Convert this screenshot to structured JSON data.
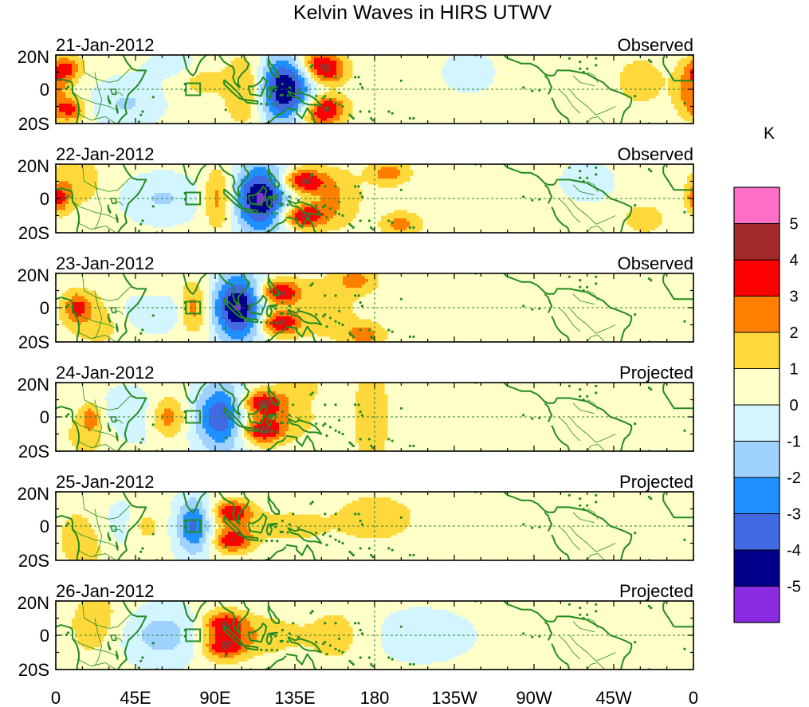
{
  "chart_data": {
    "type": "heatmap",
    "title": "Kelvin Waves in HIRS UTWV",
    "units": "K",
    "x_ticks": [
      "0",
      "45E",
      "90E",
      "135E",
      "180",
      "135W",
      "90W",
      "45W",
      "0"
    ],
    "y_ticks": [
      "20N",
      "0",
      "20S"
    ],
    "xlim_deg_east": [
      0,
      360
    ],
    "ylim_deg_lat": [
      -20,
      20
    ],
    "colorbar": {
      "labels": [
        "5",
        "4",
        "3",
        "2",
        "1",
        "0",
        "-1",
        "-2",
        "-3",
        "-4",
        "-5"
      ],
      "levels": [
        5,
        4,
        3,
        2,
        1,
        0,
        -1,
        -2,
        -3,
        -4,
        -5
      ],
      "colors": [
        "#ff6ec7",
        "#a52a2a",
        "#ff0000",
        "#ff7f00",
        "#ffd93b",
        "#ffffc8",
        "#d2f5ff",
        "#a0d2ff",
        "#1e90ff",
        "#4169e1",
        "#00008b",
        "#8a2be2"
      ]
    },
    "land_color": "#228b22",
    "panels": [
      {
        "date": "21-Jan-2012",
        "label": "Observed",
        "blobs": [
          {
            "lon": 129,
            "lat": 0,
            "v": -5.5,
            "sx": 11,
            "sy": 14
          },
          {
            "lon": 152,
            "lat": 10,
            "v": 3.6,
            "sx": 8,
            "sy": 5
          },
          {
            "lon": 152,
            "lat": -10,
            "v": 3.6,
            "sx": 8,
            "sy": 5
          },
          {
            "lon": 108,
            "lat": 0,
            "v": 2.2,
            "sx": 8,
            "sy": 14
          },
          {
            "lon": 148,
            "lat": 17,
            "v": 2.4,
            "sx": 9,
            "sy": 4
          },
          {
            "lon": 148,
            "lat": -17,
            "v": 2.0,
            "sx": 9,
            "sy": 4
          },
          {
            "lon": 6,
            "lat": 12,
            "v": 2.8,
            "sx": 6,
            "sy": 5
          },
          {
            "lon": 8,
            "lat": -12,
            "v": 2.8,
            "sx": 6,
            "sy": 5
          },
          {
            "lon": 82,
            "lat": 8,
            "v": 1.3,
            "sx": 10,
            "sy": 8
          },
          {
            "lon": 40,
            "lat": -8,
            "v": -1.5,
            "sx": 14,
            "sy": 10
          },
          {
            "lon": 72,
            "lat": 14,
            "v": -1.2,
            "sx": 14,
            "sy": 6
          },
          {
            "lon": 358,
            "lat": 0,
            "v": 2.4,
            "sx": 6,
            "sy": 10
          },
          {
            "lon": 330,
            "lat": 5,
            "v": 1.2,
            "sx": 10,
            "sy": 10
          },
          {
            "lon": 233,
            "lat": 10,
            "v": -1.2,
            "sx": 10,
            "sy": 8
          }
        ]
      },
      {
        "date": "22-Jan-2012",
        "label": "Observed",
        "blobs": [
          {
            "lon": 116,
            "lat": 0,
            "v": -5.6,
            "sx": 11,
            "sy": 14
          },
          {
            "lon": 139,
            "lat": 10,
            "v": 4.0,
            "sx": 9,
            "sy": 5
          },
          {
            "lon": 139,
            "lat": -10,
            "v": 4.0,
            "sx": 9,
            "sy": 5
          },
          {
            "lon": 158,
            "lat": 0,
            "v": 1.6,
            "sx": 10,
            "sy": 12
          },
          {
            "lon": 188,
            "lat": 15,
            "v": 2.2,
            "sx": 8,
            "sy": 5
          },
          {
            "lon": 195,
            "lat": -15,
            "v": 2.0,
            "sx": 8,
            "sy": 5
          },
          {
            "lon": 92,
            "lat": 0,
            "v": 2.4,
            "sx": 6,
            "sy": 12
          },
          {
            "lon": 2,
            "lat": 0,
            "v": 2.6,
            "sx": 4,
            "sy": 6
          },
          {
            "lon": 12,
            "lat": 10,
            "v": 1.4,
            "sx": 10,
            "sy": 10
          },
          {
            "lon": 60,
            "lat": 0,
            "v": -1.5,
            "sx": 16,
            "sy": 10
          },
          {
            "lon": 300,
            "lat": 10,
            "v": -1.3,
            "sx": 10,
            "sy": 8
          },
          {
            "lon": 332,
            "lat": -12,
            "v": 1.3,
            "sx": 8,
            "sy": 6
          }
        ]
      },
      {
        "date": "23-Jan-2012",
        "label": "Observed",
        "blobs": [
          {
            "lon": 103,
            "lat": 0,
            "v": -5.5,
            "sx": 10,
            "sy": 14
          },
          {
            "lon": 126,
            "lat": 9,
            "v": 4.0,
            "sx": 8,
            "sy": 5
          },
          {
            "lon": 126,
            "lat": -9,
            "v": 4.0,
            "sx": 8,
            "sy": 5
          },
          {
            "lon": 152,
            "lat": 0,
            "v": 1.4,
            "sx": 12,
            "sy": 12
          },
          {
            "lon": 170,
            "lat": 16,
            "v": 2.0,
            "sx": 8,
            "sy": 5
          },
          {
            "lon": 174,
            "lat": -16,
            "v": 2.2,
            "sx": 8,
            "sy": 5
          },
          {
            "lon": 78,
            "lat": 0,
            "v": 2.6,
            "sx": 6,
            "sy": 10
          },
          {
            "lon": 12,
            "lat": 0,
            "v": 2.6,
            "sx": 5,
            "sy": 6
          },
          {
            "lon": 25,
            "lat": -5,
            "v": 1.4,
            "sx": 14,
            "sy": 12
          },
          {
            "lon": 52,
            "lat": 0,
            "v": -1.6,
            "sx": 18,
            "sy": 10
          },
          {
            "lon": 55,
            "lat": 12,
            "v": 1.2,
            "sx": 10,
            "sy": 6
          }
        ]
      },
      {
        "date": "24-Jan-2012",
        "label": "Projected",
        "blobs": [
          {
            "lon": 93,
            "lat": 0,
            "v": -4.2,
            "sx": 10,
            "sy": 14
          },
          {
            "lon": 116,
            "lat": 8,
            "v": 3.7,
            "sx": 8,
            "sy": 5
          },
          {
            "lon": 116,
            "lat": -8,
            "v": 3.7,
            "sx": 8,
            "sy": 5
          },
          {
            "lon": 130,
            "lat": 0,
            "v": 1.3,
            "sx": 12,
            "sy": 10
          },
          {
            "lon": 178,
            "lat": 0,
            "v": 1.5,
            "sx": 7,
            "sy": 20
          },
          {
            "lon": 63,
            "lat": 0,
            "v": 2.4,
            "sx": 7,
            "sy": 8
          },
          {
            "lon": 20,
            "lat": 0,
            "v": 2.0,
            "sx": 4,
            "sy": 6
          },
          {
            "lon": 20,
            "lat": -8,
            "v": 1.3,
            "sx": 12,
            "sy": 12
          },
          {
            "lon": 38,
            "lat": 0,
            "v": -1.4,
            "sx": 16,
            "sy": 12
          },
          {
            "lon": 138,
            "lat": 18,
            "v": 1.2,
            "sx": 8,
            "sy": 5
          }
        ]
      },
      {
        "date": "25-Jan-2012",
        "label": "Projected",
        "blobs": [
          {
            "lon": 100,
            "lat": 8,
            "v": 3.6,
            "sx": 8,
            "sy": 5
          },
          {
            "lon": 100,
            "lat": -8,
            "v": 3.6,
            "sx": 8,
            "sy": 5
          },
          {
            "lon": 78,
            "lat": 0,
            "v": -3.6,
            "sx": 7,
            "sy": 12
          },
          {
            "lon": 50,
            "lat": 0,
            "v": 1.5,
            "sx": 7,
            "sy": 8
          },
          {
            "lon": 130,
            "lat": 0,
            "v": 1.2,
            "sx": 14,
            "sy": 6
          },
          {
            "lon": 18,
            "lat": -6,
            "v": 1.5,
            "sx": 12,
            "sy": 14
          },
          {
            "lon": 35,
            "lat": 0,
            "v": -1.3,
            "sx": 14,
            "sy": 12
          },
          {
            "lon": 180,
            "lat": 5,
            "v": 1.0,
            "sx": 20,
            "sy": 12
          }
        ]
      },
      {
        "date": "26-Jan-2012",
        "label": "Projected",
        "blobs": [
          {
            "lon": 95,
            "lat": 7,
            "v": 3.0,
            "sx": 8,
            "sy": 5
          },
          {
            "lon": 95,
            "lat": -7,
            "v": 3.0,
            "sx": 8,
            "sy": 5
          },
          {
            "lon": 110,
            "lat": 0,
            "v": 1.5,
            "sx": 18,
            "sy": 8
          },
          {
            "lon": 65,
            "lat": 0,
            "v": -1.6,
            "sx": 12,
            "sy": 12
          },
          {
            "lon": 25,
            "lat": 5,
            "v": 1.6,
            "sx": 12,
            "sy": 14
          },
          {
            "lon": 40,
            "lat": 0,
            "v": -1.2,
            "sx": 14,
            "sy": 12
          },
          {
            "lon": 205,
            "lat": 0,
            "v": -1.0,
            "sx": 24,
            "sy": 12
          },
          {
            "lon": 160,
            "lat": 0,
            "v": 1.0,
            "sx": 14,
            "sy": 14
          }
        ]
      }
    ]
  }
}
